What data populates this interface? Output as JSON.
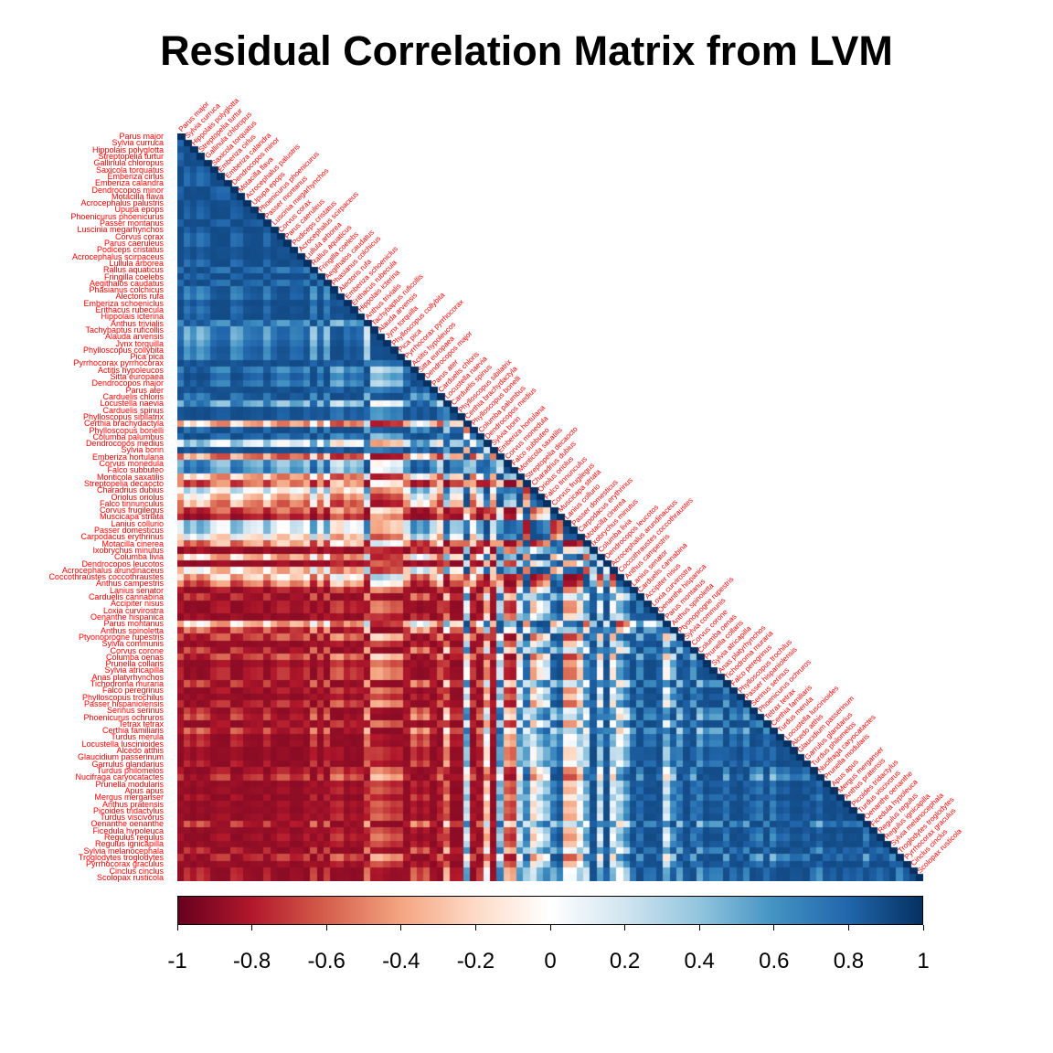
{
  "chart_data": {
    "type": "heatmap",
    "title": "Residual Correlation Matrix from LVM",
    "shape": "lower-triangular",
    "colorscale": {
      "min": -1,
      "max": 1,
      "colors": [
        "#67001F",
        "#B2182B",
        "#D6604D",
        "#F4A582",
        "#FDDBC7",
        "#FFFFFF",
        "#D1E5F0",
        "#92C5DE",
        "#4393C3",
        "#2166AC",
        "#053061"
      ],
      "ticks": [
        "-1",
        "-0.8",
        "-0.6",
        "-0.4",
        "-0.2",
        "0",
        "0.2",
        "0.4",
        "0.6",
        "0.8",
        "1"
      ]
    },
    "label_color": "#ff0000",
    "row_labels": [
      "Parus major",
      "Sylvia curruca",
      "Hippolais polyglotta",
      "Streptopelia turtur",
      "Gallinula chloropus",
      "Saxicola torquatus",
      "Emberiza cirlus",
      "Emberiza calandra",
      "Dendrocopos minor",
      "Motacilla flava",
      "Acrocephalus palustris",
      "Upupa epops",
      "Phoenicurus phoenicurus",
      "Passer montanus",
      "Luscinia megarhynchos",
      "Corvus corax",
      "Parus caeruleus",
      "Podiceps cristatus",
      "Acrocephalus scirpaceus",
      "Lullula arborea",
      "Rallus aquaticus",
      "Fringilla coelebs",
      "Aegithalos caudatus",
      "Phasianus colchicus",
      "Alectoris rufa",
      "Emberiza schoeniclus",
      "Erithacus rubecula",
      "Hippolais icterina",
      "Anthus trivialis",
      "Tachybaptus ruficollis",
      "Alauda arvensis",
      "Jynx torquilla",
      "Phylloscopus collybita",
      "Pica pica",
      "Pyrrhocorax pyrrhocorax",
      "Actitis hypoleucos",
      "Sitta europaea",
      "Dendrocopos major",
      "Parus ater",
      "Carduelis chloris",
      "Locustella naevia",
      "Carduelis spinus",
      "Phylloscopus sibilatrix",
      "Certhia brachydactyla",
      "Phylloscopus bonelli",
      "Columba palumbus",
      "Dendrocopos medius",
      "Sylvia borin",
      "Emberiza hortulana",
      "Corvus monedula",
      "Falco subbuteo",
      "Monticola saxatilis",
      "Streptopelia decaocto",
      "Charadrius dubius",
      "Oriolus oriolus",
      "Falco tinnunculus",
      "Corvus frugilegus",
      "Muscicapa striata",
      "Lanius collurio",
      "Passer domesticus",
      "Carpodacus erythrinus",
      "Motacilla cinerea",
      "Ixobrychus minutus",
      "Columba livia",
      "Dendrocopos leucotos",
      "Acrocephalus arundinaceus",
      "Coccothraustes coccothraustes",
      "Anthus campestris",
      "Lanius senator",
      "Carduelis cannabina",
      "Accipiter nisus",
      "Loxia curvirostra",
      "Oenanthe hispanica",
      "Parus montanus",
      "Anthus spinoletta",
      "Ptyonoprogne rupestris",
      "Sylvia communis",
      "Corvus corone",
      "Columba oenas",
      "Prunella collaris",
      "Sylvia atricapilla",
      "Anas platyrhynchos",
      "Tichodroma muraria",
      "Falco peregrinus",
      "Phylloscopus trochilus",
      "Passer hispaniolensis",
      "Serinus serinus",
      "Phoenicurus ochruros",
      "Tetrax tetrax",
      "Certhia familiaris",
      "Turdus merula",
      "Locustella luscinioides",
      "Alcedo atthis",
      "Glaucidium passerinum",
      "Garrulus glandarius",
      "Turdus philomelos",
      "Nucifraga caryocatactes",
      "Prunella modularis",
      "Apus apus",
      "Mergus merganser",
      "Anthus pratensis",
      "Picoides tridactylus",
      "Turdus viscivorus",
      "Oenanthe oenanthe",
      "Ficedula hypoleuca",
      "Regulus regulus",
      "Regulus ignicapilla",
      "Sylvia melanocephala",
      "Troglodytes troglodytes",
      "Pyrrhocorax graculus",
      "Cinclus cinclus",
      "Scolopax rusticola"
    ],
    "correlation_summary": "lower-triangular residual correlations between species, ranging from strong negative (dark red) to strong positive (dark blue)"
  }
}
